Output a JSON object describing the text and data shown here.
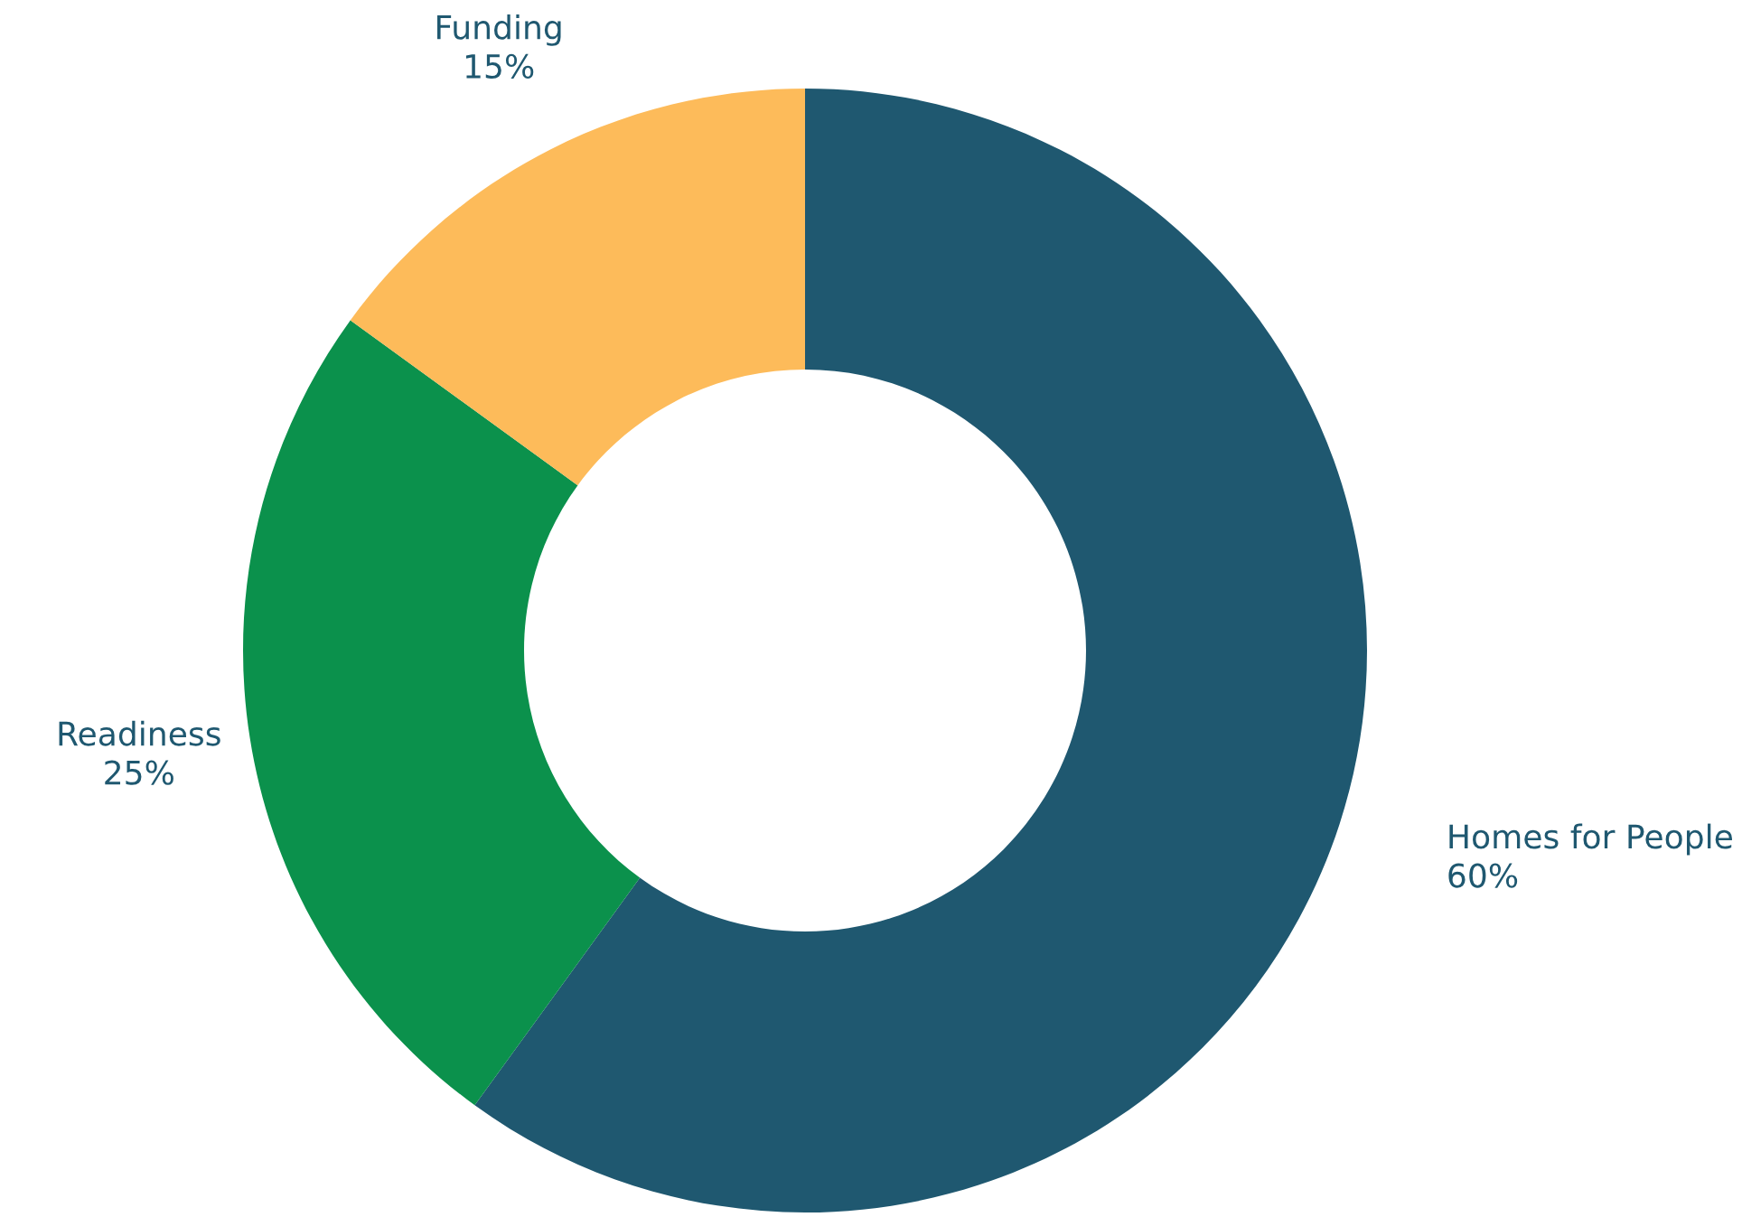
{
  "chart_data": {
    "type": "donut",
    "categories": [
      "Homes for People",
      "Readiness",
      "Funding"
    ],
    "values": [
      60,
      25,
      15
    ],
    "value_labels": [
      "60%",
      "25%",
      "15%"
    ],
    "colors": [
      "#1f5870",
      "#0b914c",
      "#fdbb5a"
    ],
    "legend": false
  }
}
